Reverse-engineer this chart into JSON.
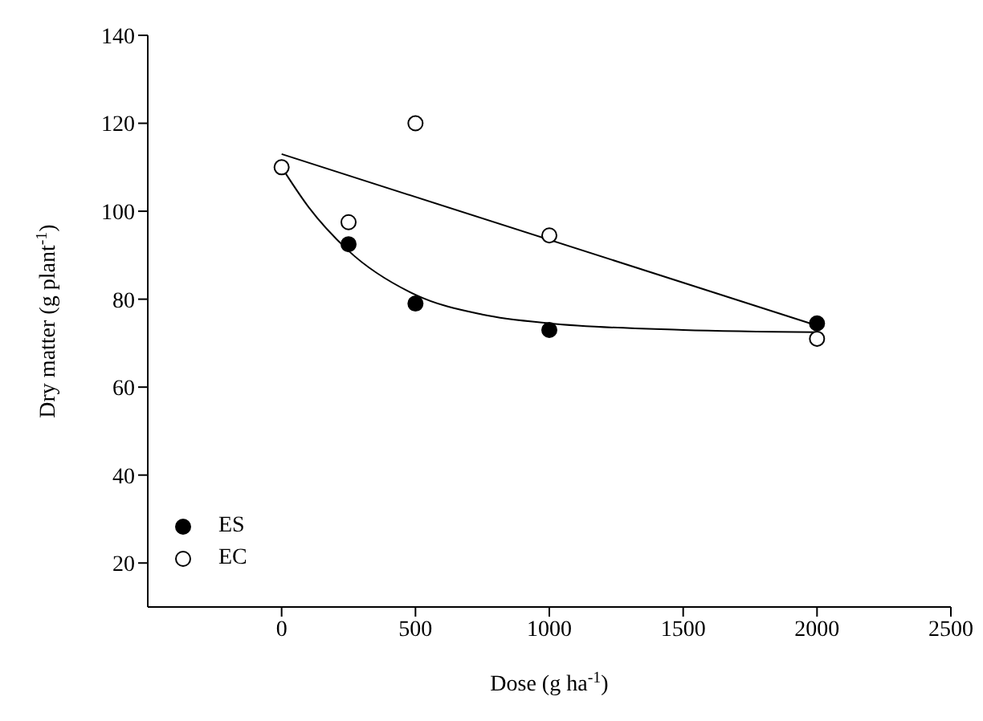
{
  "chart_data": {
    "type": "scatter",
    "xlabel": "Dose (g ha$^{-1}$)",
    "ylabel": "Dry matter (g plant$^{-1}$)",
    "xlim": [
      -500,
      2500
    ],
    "xticks": [
      0,
      500,
      1000,
      1500,
      2000,
      2500
    ],
    "ylim": [
      10,
      140
    ],
    "yticks": [
      20,
      40,
      60,
      80,
      100,
      120,
      140
    ],
    "grid": false,
    "legend": "bottom left",
    "marker": "circle",
    "series": [
      {
        "name": "ES",
        "color": "#000000",
        "x": [
          250,
          500,
          1000,
          2000
        ],
        "values": [
          92.5,
          79,
          73,
          74.5
        ]
      },
      {
        "name": "EC",
        "color": "#ffffff",
        "x": [
          0,
          250,
          500,
          1000,
          2000
        ],
        "values": [
          110,
          97.5,
          120,
          94.5,
          71
        ]
      },
      {
        "type": "line",
        "marker": "none",
        "color": "#000000",
        "x": [
          0,
          100,
          250,
          500,
          750,
          1000,
          1500,
          2000
        ],
        "values": [
          110,
          101,
          91,
          81,
          76.5,
          74.5,
          73,
          72.5
        ]
      },
      {
        "type": "line",
        "marker": "none",
        "color": "#000000",
        "x": [
          0,
          2000
        ],
        "values": [
          113,
          74
        ]
      }
    ]
  }
}
